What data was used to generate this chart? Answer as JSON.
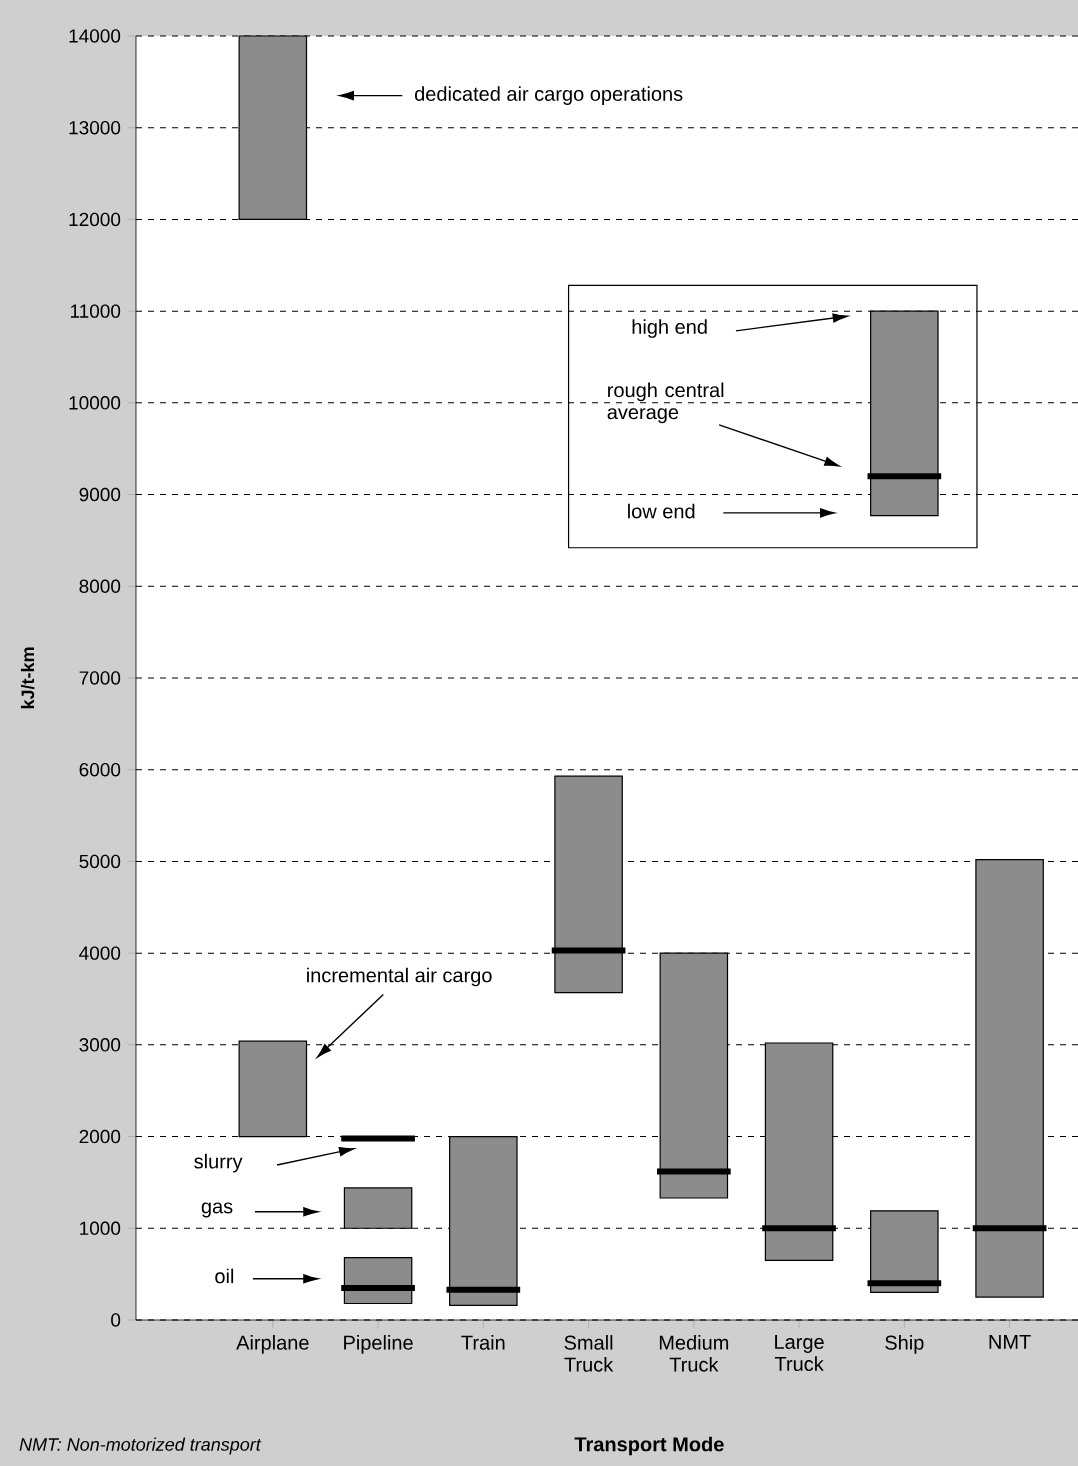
{
  "chart_data": {
    "type": "bar",
    "xlabel": "Transport Mode",
    "ylabel": "kJ/t-km",
    "categories": [
      "Airplane",
      "Pipeline",
      "Train",
      "Small Truck",
      "Medium Truck",
      "Large Truck",
      "Ship",
      "NMT"
    ],
    "series": [
      {
        "color": "#8c8c8c",
        "base": [
          2000,
          1000,
          null,
          null,
          null,
          null,
          null,
          null
        ],
        "values": [
          1040,
          440,
          null,
          null,
          null,
          null,
          null,
          null
        ]
      },
      {
        "color": "#8c8c8c",
        "base": [
          12000,
          null,
          null,
          null,
          null,
          null,
          null,
          null
        ],
        "values": [
          2000,
          null,
          null,
          null,
          null,
          null,
          null,
          null
        ]
      },
      {
        "type": "box",
        "color": "#8c8c8c",
        "boxes": [
          null,
          {
            "low": 180,
            "q1": 180,
            "median": 350,
            "q3": 680,
            "high": 680
          },
          {
            "low": 160,
            "q1": 160,
            "median": 330,
            "q3": 2000,
            "high": 2000
          },
          {
            "low": 3570,
            "q1": 3570,
            "median": 4030,
            "q3": 5930,
            "high": 5930
          },
          {
            "low": 1330,
            "q1": 1330,
            "median": 1620,
            "q3": 4000,
            "high": 4000
          },
          {
            "low": 650,
            "q1": 650,
            "median": 1000,
            "q3": 3020,
            "high": 3020
          },
          {
            "low": 300,
            "q1": 300,
            "median": 400,
            "q3": 1190,
            "high": 1190
          },
          {
            "low": 250,
            "q1": 250,
            "median": 1000,
            "q3": 5020,
            "high": 5020
          }
        ]
      },
      {
        "type": "box",
        "color": "#8c8c8c",
        "boxes": [
          null,
          null,
          null,
          null,
          null,
          null,
          {
            "low": 8770,
            "q1": 8770,
            "median": 9200,
            "q3": 11000,
            "high": 11000
          },
          null
        ]
      },
      {
        "type": "box",
        "color": "#000000",
        "boxes": [
          null,
          {
            "low": 1980,
            "q1": 1980,
            "median": 1980,
            "q3": 1980,
            "high": 1980
          },
          null,
          null,
          null,
          null,
          null,
          null
        ]
      }
    ],
    "ylim": [
      0,
      14000
    ],
    "yticks": [
      0,
      1000,
      2000,
      3000,
      4000,
      5000,
      6000,
      7000,
      8000,
      9000,
      10000,
      11000,
      12000,
      13000,
      14000
    ],
    "grid": "y",
    "annotations": [
      "dedicated air cargo operations",
      "incremental air cargo",
      "slurry",
      "gas",
      "oil",
      "high end",
      "rough central average",
      "low end",
      "NMT: Non-motorized transport"
    ]
  }
}
